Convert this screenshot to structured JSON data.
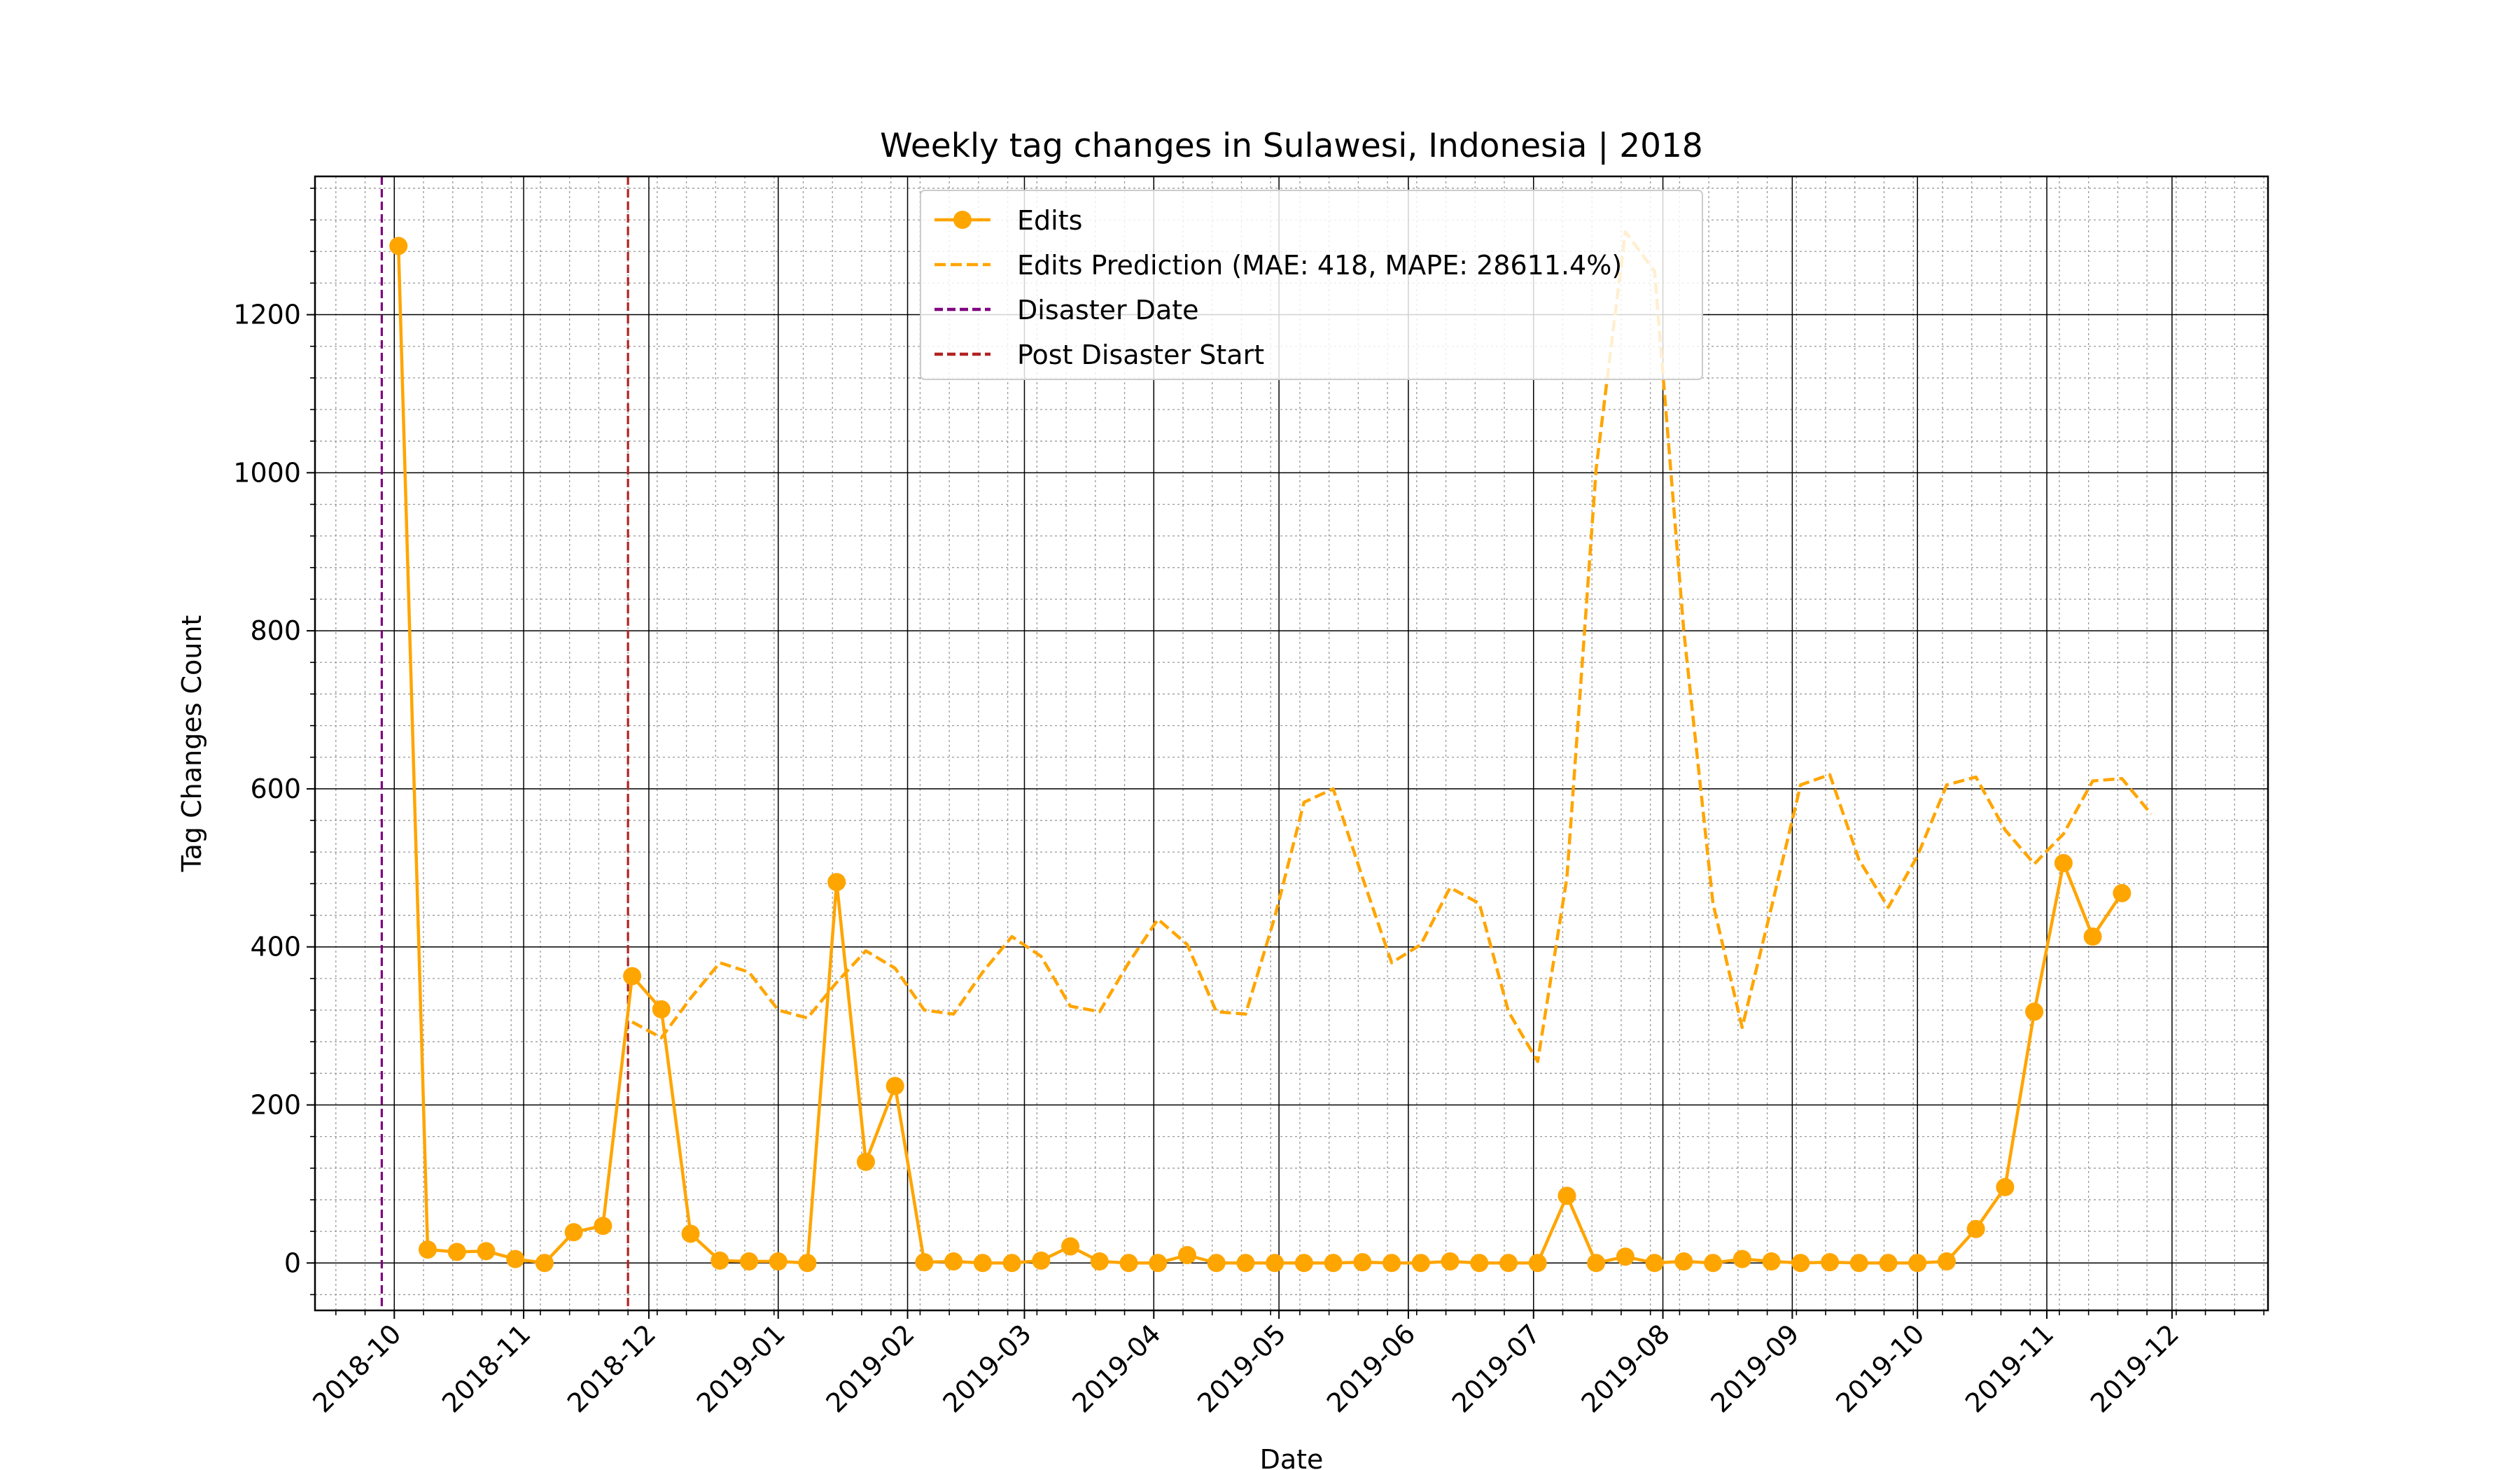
{
  "chart_data": {
    "type": "line",
    "title": "Weekly tag changes in Sulawesi, Indonesia | 2018",
    "xlabel": "Date",
    "ylabel": "Tag Changes Count",
    "x_tick_labels": [
      "2018-10",
      "2018-11",
      "2018-12",
      "2019-01",
      "2019-02",
      "2019-03",
      "2019-04",
      "2019-05",
      "2019-06",
      "2019-07",
      "2019-08",
      "2019-09",
      "2019-10",
      "2019-11",
      "2019-12"
    ],
    "x_range": [
      "2018-09-12",
      "2019-12-24"
    ],
    "y_ticks": [
      0,
      200,
      400,
      600,
      800,
      1000,
      1200
    ],
    "ylim": [
      -60,
      1375
    ],
    "grid": "major and minor",
    "legend_position": "top-center",
    "colors": {
      "edits": "#FFA500",
      "prediction": "#FFA500",
      "disaster": "#800080",
      "post_disaster": "#B22222",
      "major_grid": "#000000",
      "minor_grid": "#999999"
    },
    "vlines": [
      {
        "name": "Disaster Date",
        "x": "2018-09-28"
      },
      {
        "name": "Post Disaster Start",
        "x": "2018-11-26"
      }
    ],
    "series": [
      {
        "name": "Edits",
        "style": "solid-marker",
        "x": [
          "2018-10-02",
          "2018-10-09",
          "2018-10-16",
          "2018-10-23",
          "2018-10-30",
          "2018-11-06",
          "2018-11-13",
          "2018-11-20",
          "2018-11-27",
          "2018-12-04",
          "2018-12-11",
          "2018-12-18",
          "2018-12-25",
          "2019-01-01",
          "2019-01-08",
          "2019-01-15",
          "2019-01-22",
          "2019-01-29",
          "2019-02-05",
          "2019-02-12",
          "2019-02-19",
          "2019-02-26",
          "2019-03-05",
          "2019-03-12",
          "2019-03-19",
          "2019-03-26",
          "2019-04-02",
          "2019-04-09",
          "2019-04-16",
          "2019-04-23",
          "2019-04-30",
          "2019-05-07",
          "2019-05-14",
          "2019-05-21",
          "2019-05-28",
          "2019-06-04",
          "2019-06-11",
          "2019-06-18",
          "2019-06-25",
          "2019-07-02",
          "2019-07-09",
          "2019-07-16",
          "2019-07-23",
          "2019-07-30",
          "2019-08-06",
          "2019-08-13",
          "2019-08-20",
          "2019-08-27",
          "2019-09-03",
          "2019-09-10",
          "2019-09-17",
          "2019-09-24",
          "2019-10-01",
          "2019-10-08",
          "2019-10-15",
          "2019-10-22",
          "2019-10-29",
          "2019-11-05",
          "2019-11-12",
          "2019-11-19"
        ],
        "values": [
          1287,
          17,
          14,
          15,
          5,
          0,
          39,
          47,
          363,
          321,
          37,
          3,
          2,
          2,
          0,
          482,
          128,
          224,
          1,
          2,
          0,
          0,
          3,
          21,
          2,
          0,
          0,
          10,
          0,
          0,
          0,
          0,
          0,
          1,
          0,
          0,
          2,
          0,
          0,
          0,
          85,
          0,
          8,
          0,
          2,
          0,
          5,
          2,
          0,
          1,
          0,
          0,
          0,
          2,
          43,
          96,
          318,
          506,
          413,
          468
        ]
      },
      {
        "name": "Edits Prediction (MAE: 418, MAPE: 28611.4%)",
        "style": "dashed",
        "x": [
          "2018-11-27",
          "2018-12-04",
          "2018-12-11",
          "2018-12-18",
          "2018-12-25",
          "2019-01-01",
          "2019-01-08",
          "2019-01-15",
          "2019-01-22",
          "2019-01-29",
          "2019-02-05",
          "2019-02-12",
          "2019-02-19",
          "2019-02-26",
          "2019-03-05",
          "2019-03-12",
          "2019-03-19",
          "2019-03-26",
          "2019-04-02",
          "2019-04-09",
          "2019-04-16",
          "2019-04-23",
          "2019-04-30",
          "2019-05-07",
          "2019-05-14",
          "2019-05-21",
          "2019-05-28",
          "2019-06-04",
          "2019-06-11",
          "2019-06-18",
          "2019-06-25",
          "2019-07-02",
          "2019-07-09",
          "2019-07-16",
          "2019-07-23",
          "2019-07-30",
          "2019-08-06",
          "2019-08-13",
          "2019-08-20",
          "2019-08-27",
          "2019-09-03",
          "2019-09-10",
          "2019-09-17",
          "2019-09-24",
          "2019-10-01",
          "2019-10-08",
          "2019-10-15",
          "2019-10-22",
          "2019-10-29",
          "2019-11-05",
          "2019-11-12",
          "2019-11-19",
          "2019-11-26"
        ],
        "values": [
          305,
          285,
          335,
          380,
          368,
          320,
          310,
          355,
          395,
          373,
          320,
          315,
          368,
          413,
          388,
          325,
          318,
          380,
          435,
          403,
          318,
          315,
          438,
          583,
          600,
          488,
          380,
          403,
          475,
          455,
          318,
          255,
          488,
          1005,
          1305,
          1255,
          800,
          455,
          298,
          450,
          605,
          618,
          510,
          450,
          515,
          605,
          615,
          548,
          505,
          543,
          610,
          613,
          568
        ]
      }
    ]
  }
}
